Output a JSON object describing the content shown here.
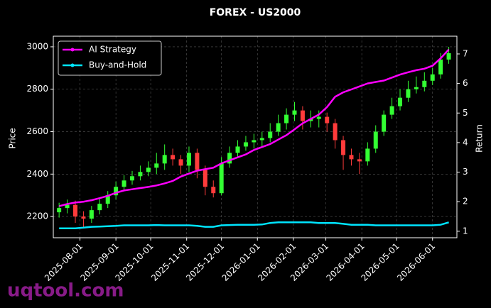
{
  "chart_data": {
    "type": "candlestick",
    "title": "FOREX - US2000",
    "ylabel": "Price",
    "y2label": "Return",
    "watermark": "uqtool.com",
    "x": [
      "2025-07-14",
      "2025-07-21",
      "2025-07-28",
      "2025-08-04",
      "2025-08-11",
      "2025-08-18",
      "2025-08-25",
      "2025-09-01",
      "2025-09-08",
      "2025-09-15",
      "2025-09-22",
      "2025-09-29",
      "2025-10-06",
      "2025-10-13",
      "2025-10-20",
      "2025-10-27",
      "2025-11-03",
      "2025-11-10",
      "2025-11-17",
      "2025-11-24",
      "2025-12-01",
      "2025-12-08",
      "2025-12-15",
      "2025-12-22",
      "2025-12-29",
      "2026-01-05",
      "2026-01-12",
      "2026-01-19",
      "2026-01-26",
      "2026-02-02",
      "2026-02-09",
      "2026-02-16",
      "2026-02-23",
      "2026-03-02",
      "2026-03-09",
      "2026-03-16",
      "2026-03-23",
      "2026-03-30",
      "2026-04-06",
      "2026-04-13",
      "2026-04-20",
      "2026-04-27",
      "2026-05-04",
      "2026-05-11",
      "2026-05-18",
      "2026-05-25",
      "2026-06-01",
      "2026-06-08",
      "2026-06-15"
    ],
    "open": [
      2220,
      2240,
      2255,
      2200,
      2190,
      2230,
      2260,
      2300,
      2340,
      2370,
      2390,
      2410,
      2430,
      2450,
      2490,
      2470,
      2440,
      2500,
      2420,
      2340,
      2310,
      2450,
      2500,
      2530,
      2550,
      2560,
      2570,
      2600,
      2640,
      2680,
      2700,
      2650,
      2660,
      2670,
      2640,
      2560,
      2490,
      2470,
      2460,
      2520,
      2600,
      2680,
      2720,
      2760,
      2800,
      2810,
      2840,
      2870,
      2940
    ],
    "high": [
      2265,
      2280,
      2275,
      2225,
      2250,
      2285,
      2320,
      2365,
      2395,
      2415,
      2440,
      2460,
      2500,
      2540,
      2520,
      2490,
      2530,
      2520,
      2440,
      2370,
      2480,
      2530,
      2560,
      2580,
      2590,
      2600,
      2640,
      2680,
      2710,
      2740,
      2720,
      2700,
      2700,
      2690,
      2660,
      2580,
      2520,
      2500,
      2550,
      2630,
      2700,
      2760,
      2800,
      2840,
      2860,
      2880,
      2900,
      2970,
      3000
    ],
    "low": [
      2195,
      2215,
      2170,
      2150,
      2170,
      2210,
      2240,
      2280,
      2320,
      2350,
      2370,
      2390,
      2400,
      2420,
      2440,
      2400,
      2410,
      2380,
      2300,
      2290,
      2300,
      2430,
      2480,
      2510,
      2520,
      2530,
      2550,
      2580,
      2610,
      2650,
      2610,
      2620,
      2620,
      2600,
      2520,
      2420,
      2440,
      2400,
      2440,
      2500,
      2580,
      2660,
      2700,
      2740,
      2780,
      2790,
      2820,
      2850,
      2920
    ],
    "close": [
      2240,
      2255,
      2200,
      2190,
      2230,
      2260,
      2300,
      2340,
      2370,
      2390,
      2410,
      2430,
      2450,
      2490,
      2470,
      2440,
      2500,
      2420,
      2340,
      2310,
      2450,
      2500,
      2530,
      2550,
      2560,
      2570,
      2600,
      2640,
      2680,
      2700,
      2650,
      2660,
      2670,
      2640,
      2560,
      2490,
      2470,
      2460,
      2520,
      2600,
      2680,
      2720,
      2760,
      2800,
      2810,
      2840,
      2870,
      2940,
      2970
    ],
    "up_color": "#33ff33",
    "down_color": "#ff3b3b",
    "series": [
      {
        "name": "AI Strategy",
        "color": "#ff00ff",
        "axis": "y2",
        "values": [
          1.85,
          1.92,
          1.97,
          2.0,
          2.05,
          2.12,
          2.2,
          2.3,
          2.38,
          2.42,
          2.46,
          2.5,
          2.55,
          2.62,
          2.7,
          2.85,
          2.95,
          3.05,
          3.1,
          3.15,
          3.3,
          3.4,
          3.5,
          3.6,
          3.75,
          3.85,
          3.95,
          4.1,
          4.25,
          4.45,
          4.65,
          4.8,
          4.95,
          5.2,
          5.55,
          5.7,
          5.8,
          5.9,
          6.0,
          6.05,
          6.1,
          6.2,
          6.3,
          6.38,
          6.45,
          6.5,
          6.6,
          6.85,
          7.15
        ]
      },
      {
        "name": "Buy-and-Hold",
        "color": "#00e5ff",
        "axis": "y2",
        "values": [
          1.1,
          1.1,
          1.1,
          1.12,
          1.15,
          1.16,
          1.17,
          1.18,
          1.2,
          1.2,
          1.2,
          1.2,
          1.21,
          1.2,
          1.2,
          1.2,
          1.2,
          1.18,
          1.15,
          1.15,
          1.2,
          1.21,
          1.22,
          1.22,
          1.22,
          1.23,
          1.28,
          1.3,
          1.3,
          1.3,
          1.3,
          1.3,
          1.28,
          1.28,
          1.28,
          1.25,
          1.22,
          1.22,
          1.22,
          1.2,
          1.2,
          1.2,
          1.2,
          1.2,
          1.2,
          1.2,
          1.2,
          1.22,
          1.3
        ]
      }
    ],
    "xlim": [
      "2025-07-09",
      "2026-06-22"
    ],
    "xticks": [
      "2025-08-01",
      "2025-09-01",
      "2025-10-01",
      "2025-11-01",
      "2025-12-01",
      "2026-01-01",
      "2026-02-01",
      "2026-03-01",
      "2026-04-01",
      "2026-05-01",
      "2026-06-01"
    ],
    "ylim": [
      2100,
      3050
    ],
    "yticks": [
      2200,
      2400,
      2600,
      2800,
      3000
    ],
    "y2lim": [
      0.78,
      7.6
    ],
    "y2ticks": [
      1,
      2,
      3,
      4,
      5,
      6,
      7
    ],
    "grid": true,
    "legend": "upper left"
  }
}
